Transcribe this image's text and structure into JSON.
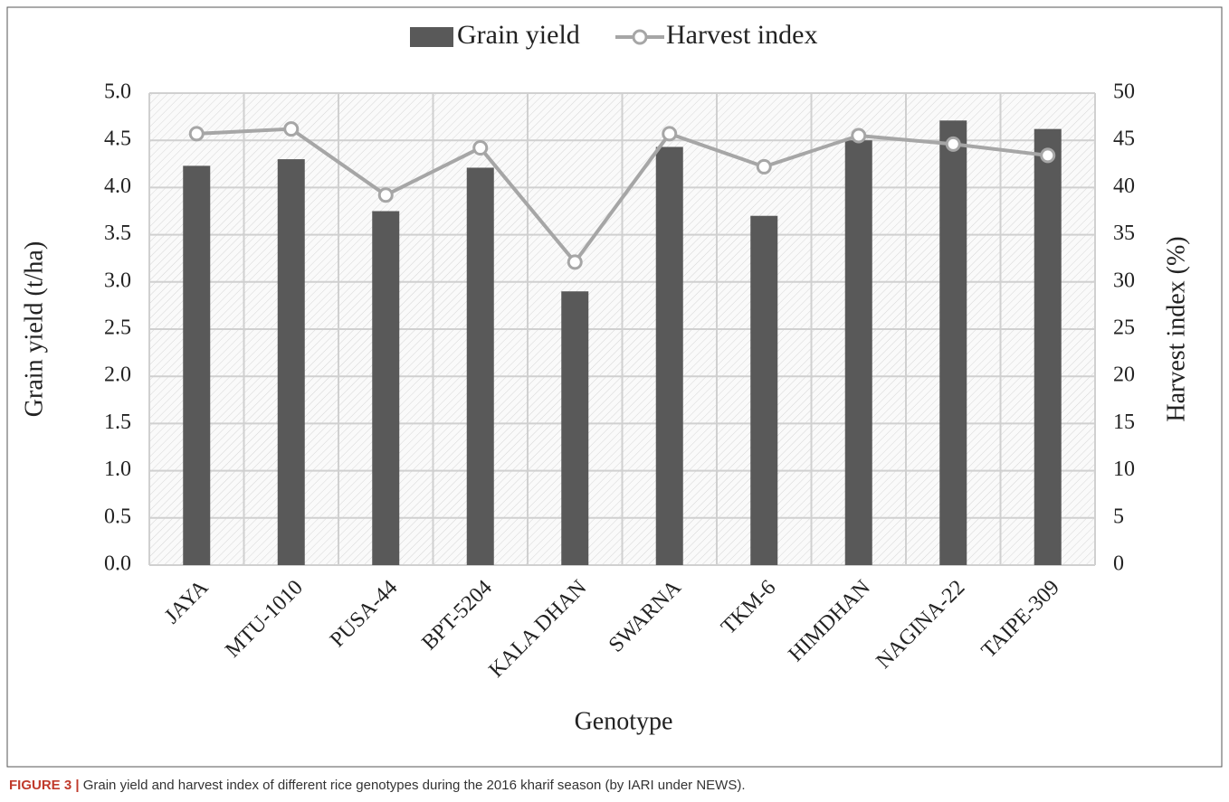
{
  "chart_data": {
    "type": "bar-line",
    "x_label": "Genotype",
    "y_label": "Grain yield (t/ha)",
    "y2_label": "Harvest index (%)",
    "categories": [
      "JAYA",
      "MTU-1010",
      "PUSA-44",
      "BPT-5204",
      "KALA DHAN",
      "SWARNA",
      "TKM-6",
      "HIMDHAN",
      "NAGINA-22",
      "TAIPE-309"
    ],
    "series": [
      {
        "name": "Grain yield",
        "type": "bar",
        "color": "#595959",
        "values": [
          4.23,
          4.3,
          3.75,
          4.21,
          2.9,
          4.43,
          3.7,
          4.5,
          4.71,
          4.62
        ]
      },
      {
        "name": "Harvest index",
        "type": "line",
        "axis": "y2",
        "color": "#a6a6a6",
        "values": [
          45.7,
          46.2,
          39.2,
          44.2,
          32.1,
          45.7,
          42.2,
          45.5,
          44.6,
          43.4
        ]
      }
    ],
    "ylim": [
      0,
      5
    ],
    "yticks": [
      {
        "value": 0,
        "label": "0.0"
      },
      {
        "value": 0.5,
        "label": "0.5"
      },
      {
        "value": 1,
        "label": "1.0"
      },
      {
        "value": 1.5,
        "label": "1.5"
      },
      {
        "value": 2,
        "label": "2.0"
      },
      {
        "value": 2.5,
        "label": "2.5"
      },
      {
        "value": 3,
        "label": "3.0"
      },
      {
        "value": 3.5,
        "label": "3.5"
      },
      {
        "value": 4,
        "label": "4.0"
      },
      {
        "value": 4.5,
        "label": "4.5"
      },
      {
        "value": 5,
        "label": "5.0"
      }
    ],
    "y2lim": [
      0,
      50
    ],
    "y2ticks": [
      0,
      5,
      10,
      15,
      20,
      25,
      30,
      35,
      40,
      45,
      50
    ],
    "grid": true,
    "legend": "top"
  },
  "caption": {
    "label": "FIGURE 3 |",
    "text": "Grain yield and harvest index of different rice genotypes during the 2016 kharif season (by IARI under NEWS)."
  }
}
